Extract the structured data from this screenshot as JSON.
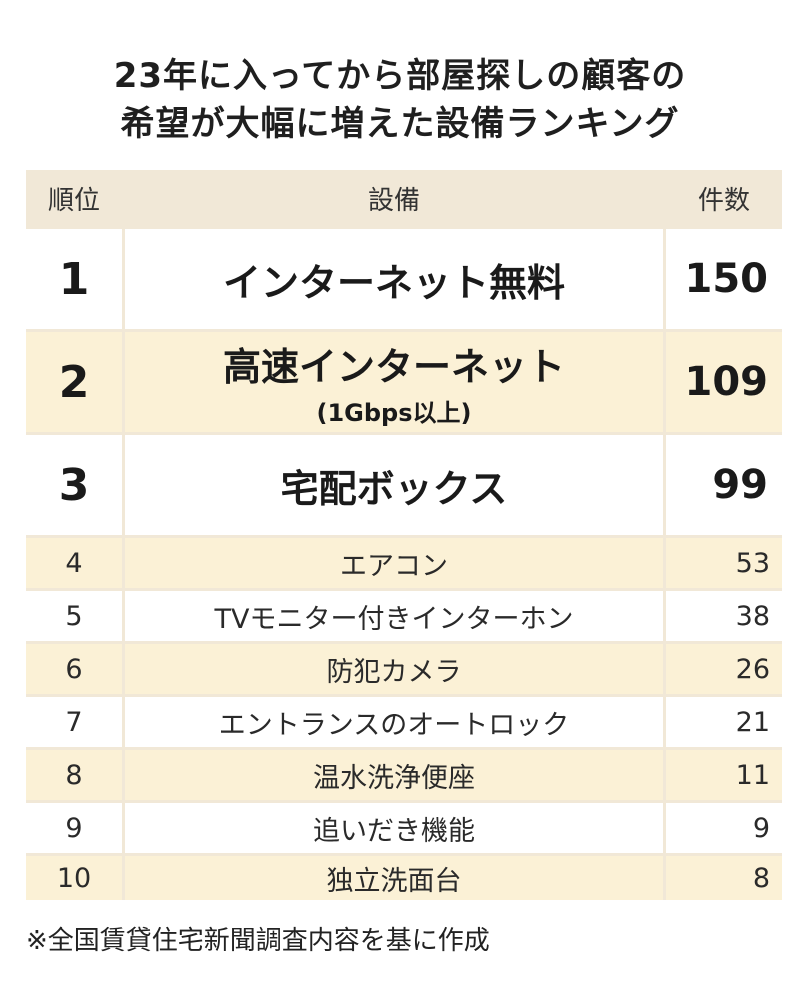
{
  "title": {
    "line1": "23年に入ってから部屋探しの顧客の",
    "line2": "希望が大幅に増えた設備ランキング"
  },
  "chart_data": {
    "type": "table",
    "columns": [
      "順位",
      "設備",
      "件数"
    ],
    "rows": [
      {
        "rank": "1",
        "feature": "インターネット無料",
        "sub": "",
        "count": "150"
      },
      {
        "rank": "2",
        "feature": "高速インターネット",
        "sub": "(1Gbps以上)",
        "count": "109"
      },
      {
        "rank": "3",
        "feature": "宅配ボックス",
        "sub": "",
        "count": "99"
      },
      {
        "rank": "4",
        "feature": "エアコン",
        "sub": "",
        "count": "53"
      },
      {
        "rank": "5",
        "feature": "TVモニター付きインターホン",
        "sub": "",
        "count": "38"
      },
      {
        "rank": "6",
        "feature": "防犯カメラ",
        "sub": "",
        "count": "26"
      },
      {
        "rank": "7",
        "feature": "エントランスのオートロック",
        "sub": "",
        "count": "21"
      },
      {
        "rank": "8",
        "feature": "温水洗浄便座",
        "sub": "",
        "count": "11"
      },
      {
        "rank": "9",
        "feature": "追いだき機能",
        "sub": "",
        "count": "9"
      },
      {
        "rank": "10",
        "feature": "独立洗面台",
        "sub": "",
        "count": "8"
      }
    ],
    "colors": {
      "header_bg": "#f1e8d7",
      "row_white": "#ffffff",
      "row_cream": "#fbf1d6"
    }
  },
  "footnote": "※全国賃貸住宅新聞調査内容を基に作成"
}
